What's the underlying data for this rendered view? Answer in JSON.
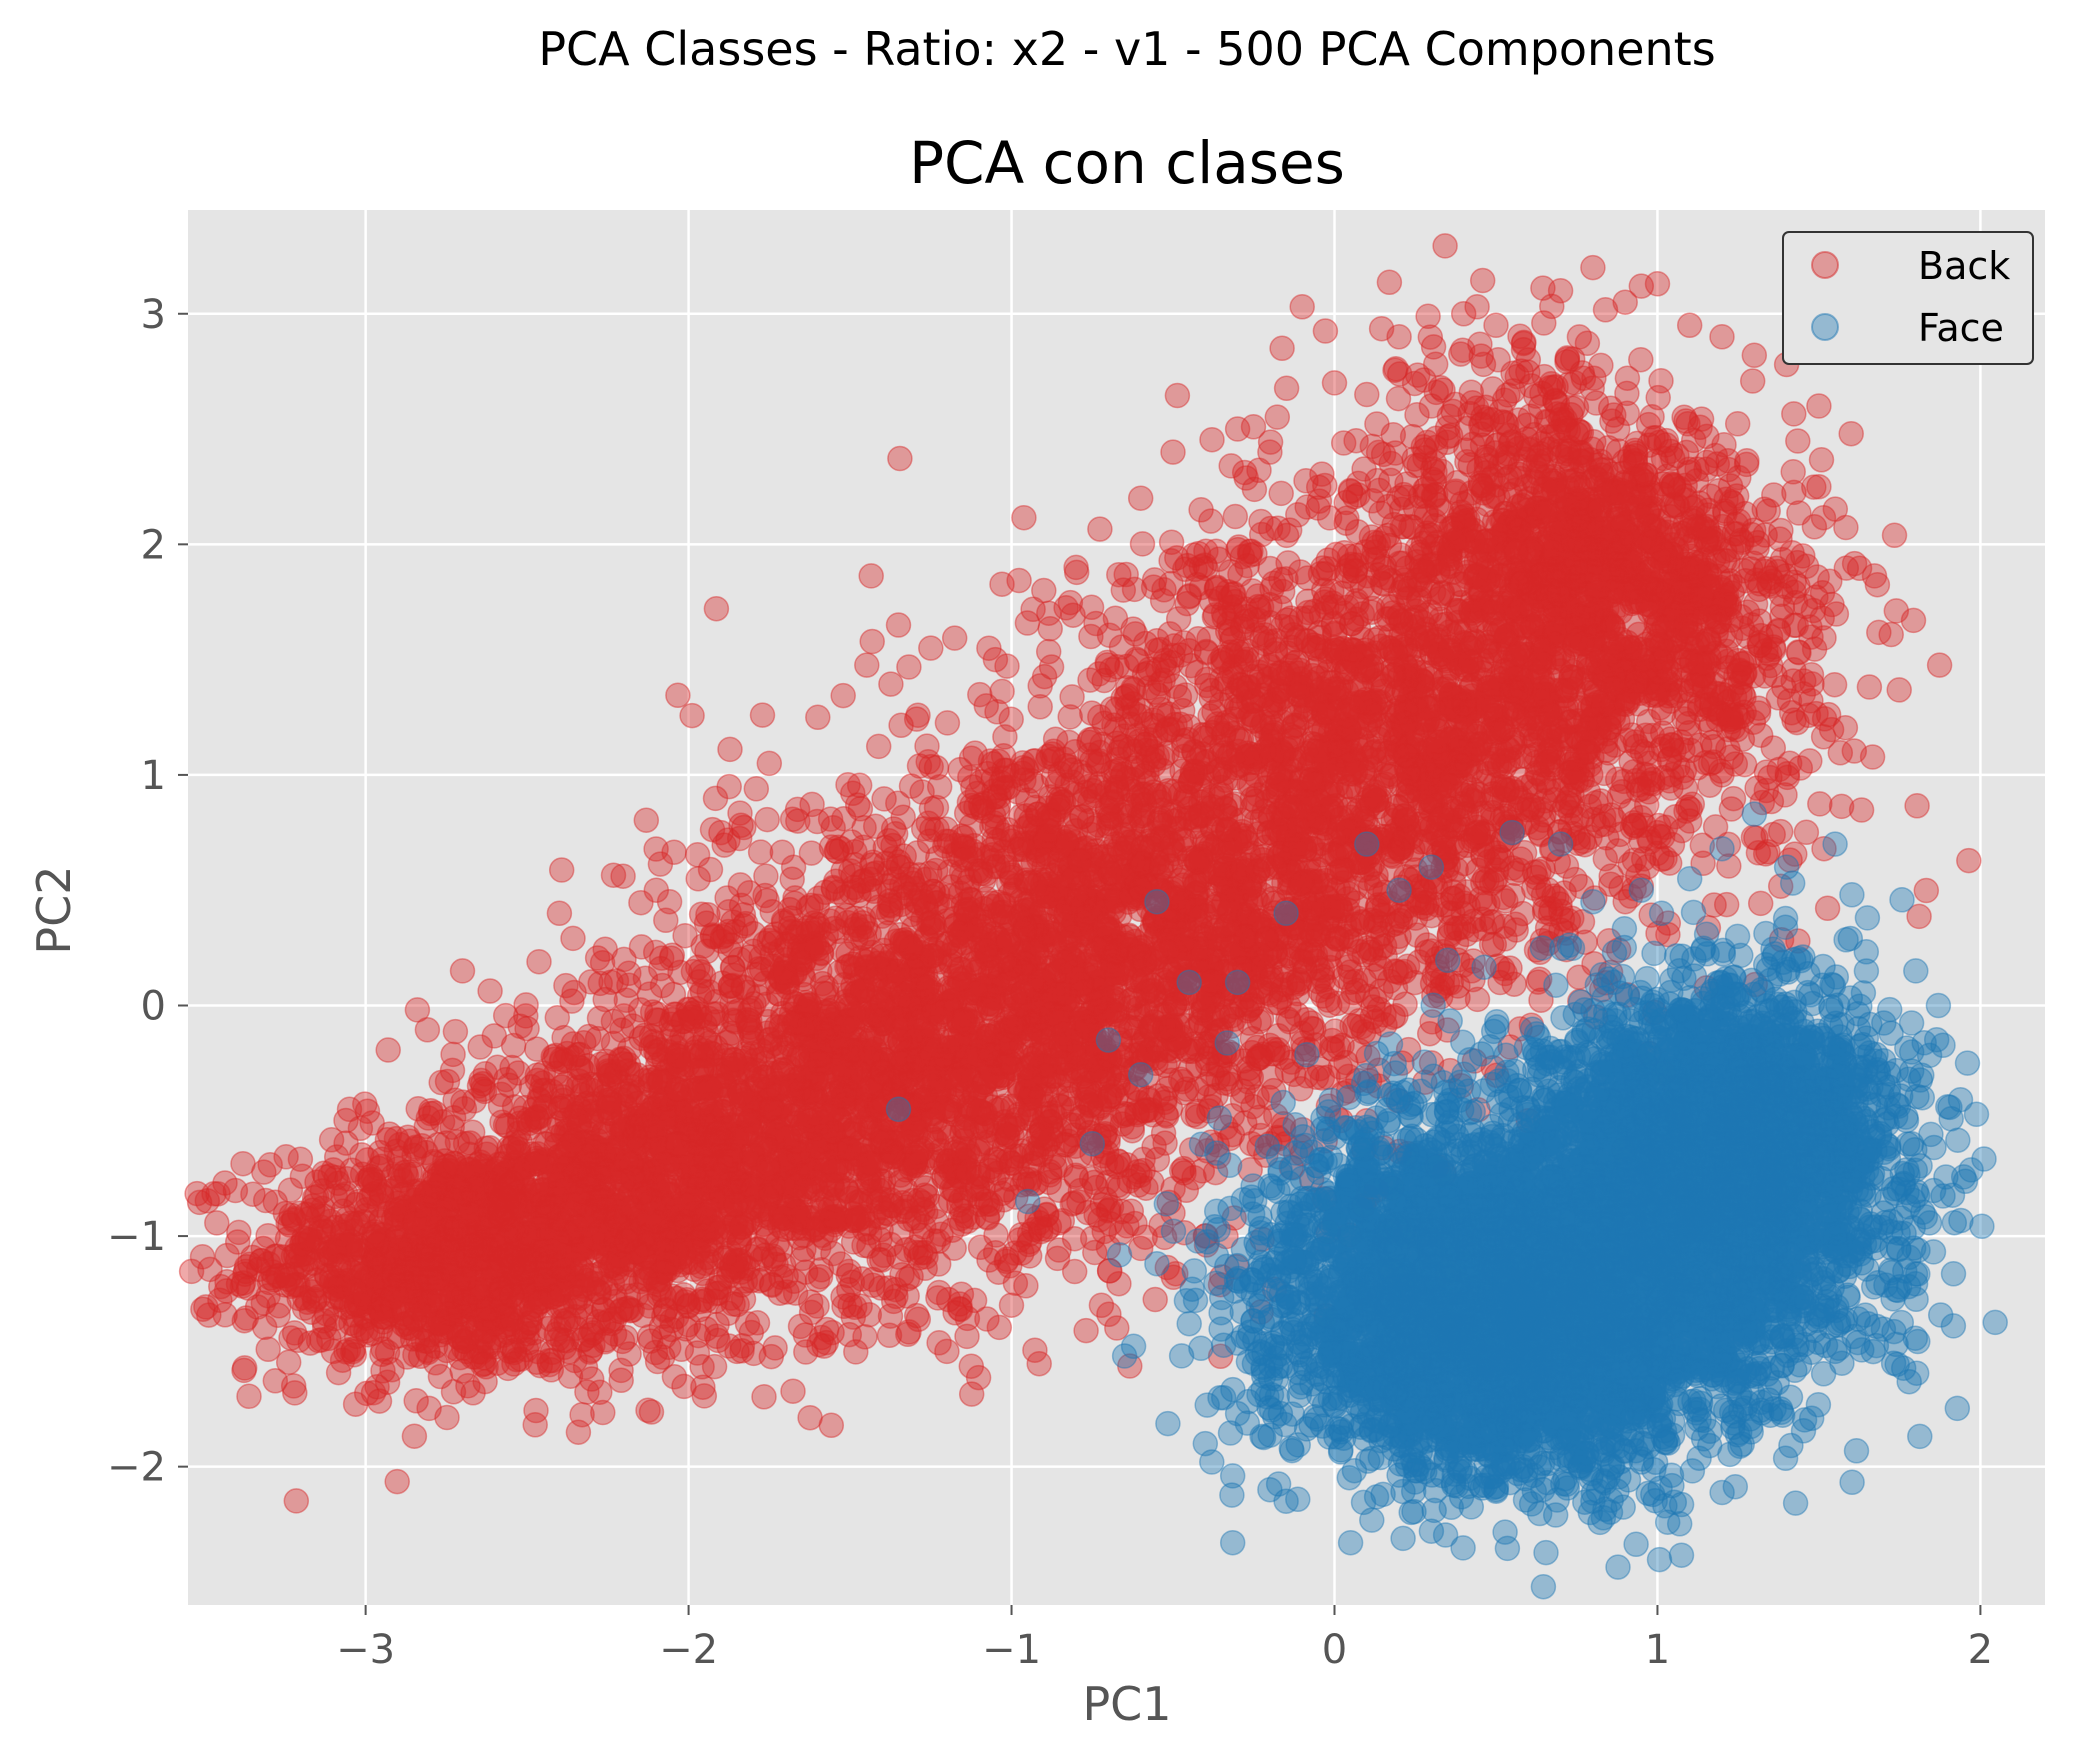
{
  "chart_data": {
    "type": "scatter",
    "suptitle": "PCA Classes - Ratio: x2 - v1 - 500 PCA Components",
    "title": "PCA con clases",
    "xlabel": "PC1",
    "ylabel": "PC2",
    "xlim": [
      -3.55,
      2.2
    ],
    "ylim": [
      -2.6,
      3.45
    ],
    "xticks": [
      -3,
      -2,
      -1,
      0,
      1,
      2
    ],
    "xtick_labels": [
      "−3",
      "−2",
      "−1",
      "0",
      "1",
      "2"
    ],
    "yticks": [
      -2,
      -1,
      0,
      1,
      2,
      3
    ],
    "ytick_labels": [
      "−2",
      "−1",
      "0",
      "1",
      "2",
      "3"
    ],
    "grid": true,
    "legend_position": "top-right",
    "background": "#e5e5e5",
    "series": [
      {
        "name": "Back",
        "color": "#d62728",
        "alpha": 0.4,
        "points": [
          [
            -3.3,
            -1.12
          ],
          [
            -3.22,
            -1.42
          ],
          [
            -3.1,
            -1.5
          ],
          [
            -2.95,
            -1.35
          ],
          [
            -3.05,
            -0.45
          ],
          [
            -2.85,
            -0.65
          ],
          [
            -2.7,
            0.15
          ],
          [
            -2.5,
            -0.1
          ],
          [
            -2.4,
            0.4
          ],
          [
            -2.3,
            -1.62
          ],
          [
            -2.2,
            0.2
          ],
          [
            -2.1,
            0.5
          ],
          [
            -2.0,
            -1.3
          ],
          [
            -1.9,
            0.75
          ],
          [
            -1.85,
            -1.5
          ],
          [
            -1.75,
            1.05
          ],
          [
            -1.6,
            1.25
          ],
          [
            -1.5,
            -1.3
          ],
          [
            -1.35,
            1.65
          ],
          [
            -1.25,
            1.55
          ],
          [
            -1.2,
            -1.5
          ],
          [
            -1.05,
            1.5
          ],
          [
            -1.0,
            -1.3
          ],
          [
            -0.9,
            1.8
          ],
          [
            -0.8,
            1.9
          ],
          [
            -0.7,
            -1.05
          ],
          [
            -0.6,
            2.2
          ],
          [
            -0.5,
            2.4
          ],
          [
            -0.4,
            -1.0
          ],
          [
            -0.3,
            2.5
          ],
          [
            -0.2,
            2.4
          ],
          [
            -0.1,
            3.03
          ],
          [
            0.0,
            2.7
          ],
          [
            0.1,
            2.65
          ],
          [
            0.2,
            2.9
          ],
          [
            0.3,
            2.6
          ],
          [
            0.4,
            3.0
          ],
          [
            0.5,
            2.95
          ],
          [
            0.6,
            2.8
          ],
          [
            0.7,
            3.1
          ],
          [
            0.8,
            3.2
          ],
          [
            0.9,
            3.05
          ],
          [
            0.95,
            3.12
          ],
          [
            1.0,
            3.13
          ],
          [
            1.1,
            2.95
          ],
          [
            1.2,
            2.9
          ],
          [
            1.3,
            2.82
          ],
          [
            1.4,
            2.78
          ],
          [
            1.5,
            2.6
          ],
          [
            1.6,
            2.48
          ],
          [
            1.5,
            2.25
          ],
          [
            1.45,
            1.95
          ],
          [
            1.35,
            1.6
          ],
          [
            1.25,
            1.25
          ],
          [
            1.2,
            1.0
          ],
          [
            1.1,
            0.8
          ],
          [
            1.0,
            0.75
          ],
          [
            0.9,
            0.45
          ],
          [
            0.5,
            0.55
          ],
          [
            0.2,
            0.3
          ],
          [
            0.1,
            -0.5
          ],
          [
            -0.2,
            -0.6
          ],
          [
            -0.5,
            -0.9
          ],
          [
            -0.85,
            0.15
          ],
          [
            -1.3,
            -0.45
          ]
        ],
        "cloud": [
          {
            "cx": -2.75,
            "cy": -1.1,
            "sx": 0.3,
            "sy": 0.25,
            "rot": 0.0,
            "n": 1200
          },
          {
            "cx": -2.1,
            "cy": -0.75,
            "sx": 0.35,
            "sy": 0.35,
            "rot": 0.4,
            "n": 1400
          },
          {
            "cx": -1.3,
            "cy": -0.3,
            "sx": 0.45,
            "sy": 0.45,
            "rot": 0.6,
            "n": 2000
          },
          {
            "cx": -0.55,
            "cy": 0.4,
            "sx": 0.45,
            "sy": 0.5,
            "rot": 0.7,
            "n": 2000
          },
          {
            "cx": 0.25,
            "cy": 1.2,
            "sx": 0.4,
            "sy": 0.5,
            "rot": 0.7,
            "n": 1800
          },
          {
            "cx": 0.85,
            "cy": 1.9,
            "sx": 0.28,
            "sy": 0.45,
            "rot": 0.5,
            "n": 1600
          }
        ]
      },
      {
        "name": "Face",
        "color": "#1f77b4",
        "alpha": 0.4,
        "points": [
          [
            -0.55,
            -1.12
          ],
          [
            -0.45,
            -1.38
          ],
          [
            -0.4,
            -1.9
          ],
          [
            -0.38,
            -1.98
          ],
          [
            -0.65,
            -1.52
          ],
          [
            -0.2,
            -2.1
          ],
          [
            -0.15,
            -2.15
          ],
          [
            0.05,
            -2.33
          ],
          [
            0.3,
            -2.28
          ],
          [
            0.5,
            -2.1
          ],
          [
            0.8,
            -2.15
          ],
          [
            0.95,
            -1.98
          ],
          [
            1.3,
            -1.6
          ],
          [
            1.5,
            -1.35
          ],
          [
            1.75,
            -1.22
          ],
          [
            1.7,
            -0.9
          ],
          [
            1.82,
            -0.4
          ],
          [
            1.87,
            0.0
          ],
          [
            1.96,
            -0.25
          ],
          [
            1.8,
            0.15
          ],
          [
            1.65,
            0.38
          ],
          [
            1.55,
            0.7
          ],
          [
            1.4,
            0.6
          ],
          [
            1.3,
            0.83
          ],
          [
            1.2,
            0.68
          ],
          [
            1.1,
            0.55
          ],
          [
            0.95,
            0.5
          ],
          [
            0.8,
            0.45
          ],
          [
            0.7,
            0.7
          ],
          [
            0.55,
            0.75
          ],
          [
            0.3,
            0.6
          ],
          [
            0.2,
            0.5
          ],
          [
            0.1,
            0.7
          ],
          [
            -0.15,
            0.4
          ],
          [
            -0.3,
            0.1
          ],
          [
            -0.45,
            0.1
          ],
          [
            -0.55,
            0.45
          ],
          [
            -0.7,
            -0.15
          ],
          [
            -0.75,
            -0.6
          ],
          [
            -0.95,
            -0.85
          ],
          [
            -1.35,
            -0.45
          ],
          [
            -0.6,
            -0.3
          ],
          [
            -0.1,
            -0.75
          ],
          [
            0.0,
            -0.95
          ],
          [
            -0.25,
            -1.2
          ],
          [
            0.25,
            -0.65
          ],
          [
            0.6,
            -0.45
          ],
          [
            0.9,
            -0.2
          ]
        ],
        "cloud": [
          {
            "cx": 0.5,
            "cy": -1.5,
            "sx": 0.32,
            "sy": 0.3,
            "rot": 0.0,
            "n": 1800
          },
          {
            "cx": 0.85,
            "cy": -1.2,
            "sx": 0.35,
            "sy": 0.35,
            "rot": 0.3,
            "n": 2000
          },
          {
            "cx": 1.15,
            "cy": -0.7,
            "sx": 0.3,
            "sy": 0.35,
            "rot": 0.4,
            "n": 1800
          },
          {
            "cx": 0.2,
            "cy": -1.1,
            "sx": 0.25,
            "sy": 0.35,
            "rot": 0.0,
            "n": 1000
          },
          {
            "cx": 1.3,
            "cy": -0.4,
            "sx": 0.22,
            "sy": 0.3,
            "rot": 0.3,
            "n": 900
          }
        ]
      }
    ]
  }
}
